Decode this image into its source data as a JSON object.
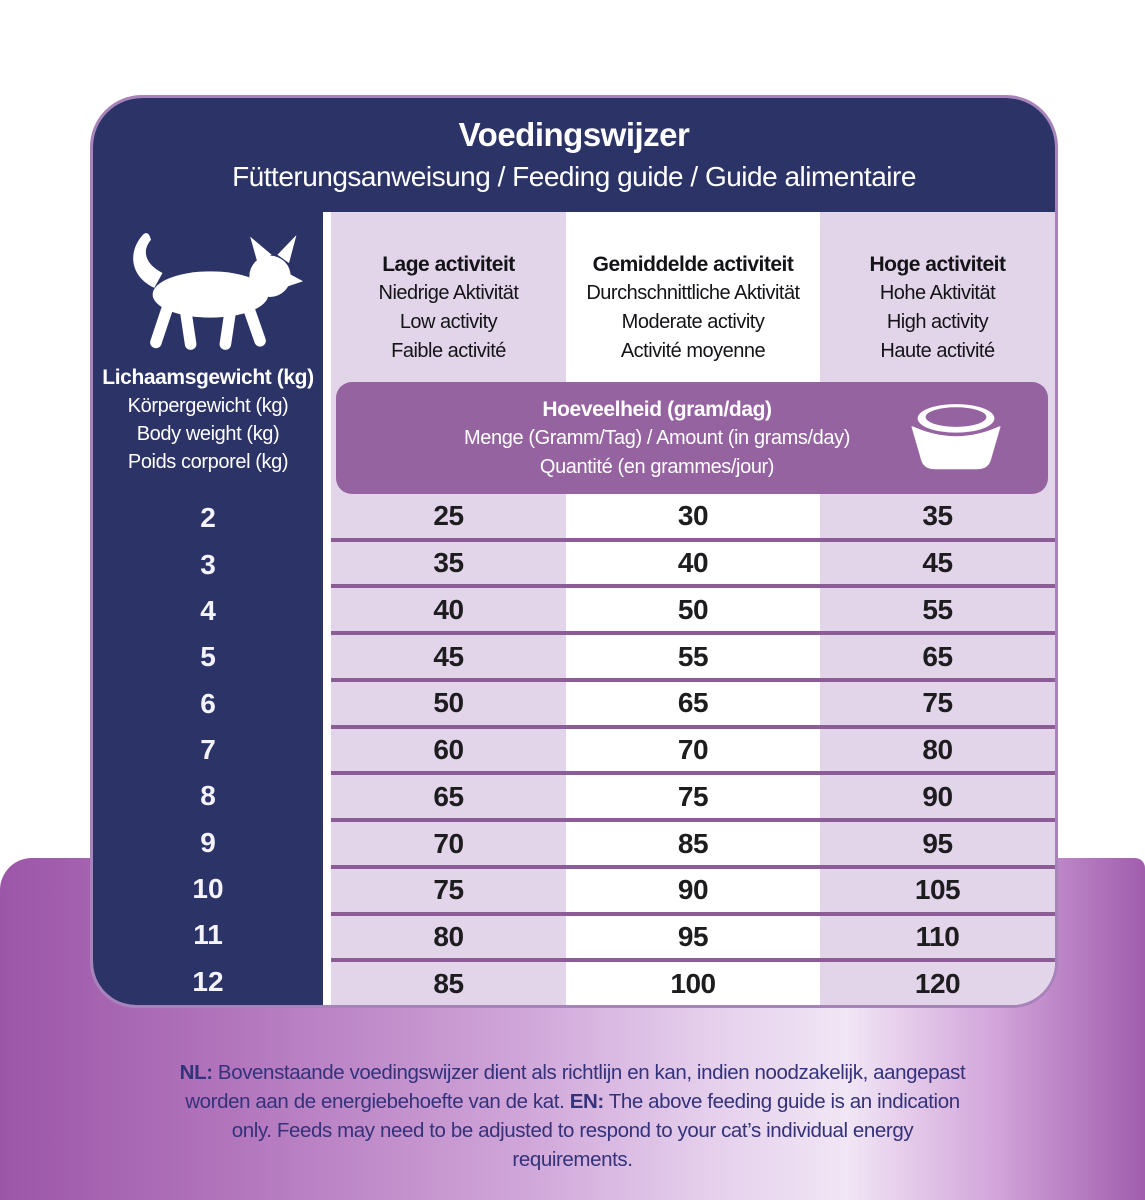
{
  "header": {
    "title": "Voedingswijzer",
    "subtitle": "Fütterungsanweisung / Feeding guide / Guide alimentaire"
  },
  "weight_column": {
    "cat_icon": "cat-silhouette-icon",
    "lines": [
      "Lichaamsgewicht (kg)",
      "Körpergewicht (kg)",
      "Body weight (kg)",
      "Poids corporel (kg)"
    ]
  },
  "activity_columns": [
    {
      "lines": [
        "Lage activiteit",
        "Niedrige Aktivität",
        "Low activity",
        "Faible activité"
      ]
    },
    {
      "lines": [
        "Gemiddelde activiteit",
        "Durchschnittliche Aktivität",
        "Moderate activity",
        "Activité moyenne"
      ]
    },
    {
      "lines": [
        "Hoge activiteit",
        "Hohe Aktivität",
        "High activity",
        "Haute activité"
      ]
    }
  ],
  "banner": {
    "bowl_icon": "pet-bowl-icon",
    "lines": [
      "Hoeveelheid (gram/dag)",
      "Menge (Gramm/Tag) / Amount (in grams/day)",
      "Quantité (en grammes/jour)"
    ]
  },
  "chart_data": {
    "type": "table",
    "title": "Voedingswijzer",
    "categories_label": "Lichaamsgewicht (kg)",
    "values_label": "Hoeveelheid (gram/dag)",
    "categories": [
      2,
      3,
      4,
      5,
      6,
      7,
      8,
      9,
      10,
      11,
      12
    ],
    "series": [
      {
        "name": "Lage activiteit / Low activity",
        "values": [
          25,
          35,
          40,
          45,
          50,
          60,
          65,
          70,
          75,
          80,
          85
        ]
      },
      {
        "name": "Gemiddelde activiteit / Moderate activity",
        "values": [
          30,
          40,
          50,
          55,
          65,
          70,
          75,
          85,
          90,
          95,
          100
        ]
      },
      {
        "name": "Hoge activiteit / High activity",
        "values": [
          35,
          45,
          55,
          65,
          75,
          80,
          90,
          95,
          105,
          110,
          120
        ]
      }
    ]
  },
  "footer": {
    "nl_label": "NL:",
    "nl_text": " Bovenstaande voedingswijzer dient als richtlijn en kan, indien noodzakelijk, aangepast worden aan de energiebehoefte van de kat. ",
    "en_label": "EN:",
    "en_text": " The above feeding guide is an indication only. Feeds may need to be adjusted to respond to your cat’s individual energy requirements."
  },
  "colors": {
    "navy": "#2b3367",
    "banner_purple": "#95639f",
    "stripe_purple": "#e2d4e9",
    "row_separator": "#8c5c97",
    "card_border": "#a883bb",
    "background_purple": "#9c56a8",
    "footer_text": "#33327a"
  }
}
